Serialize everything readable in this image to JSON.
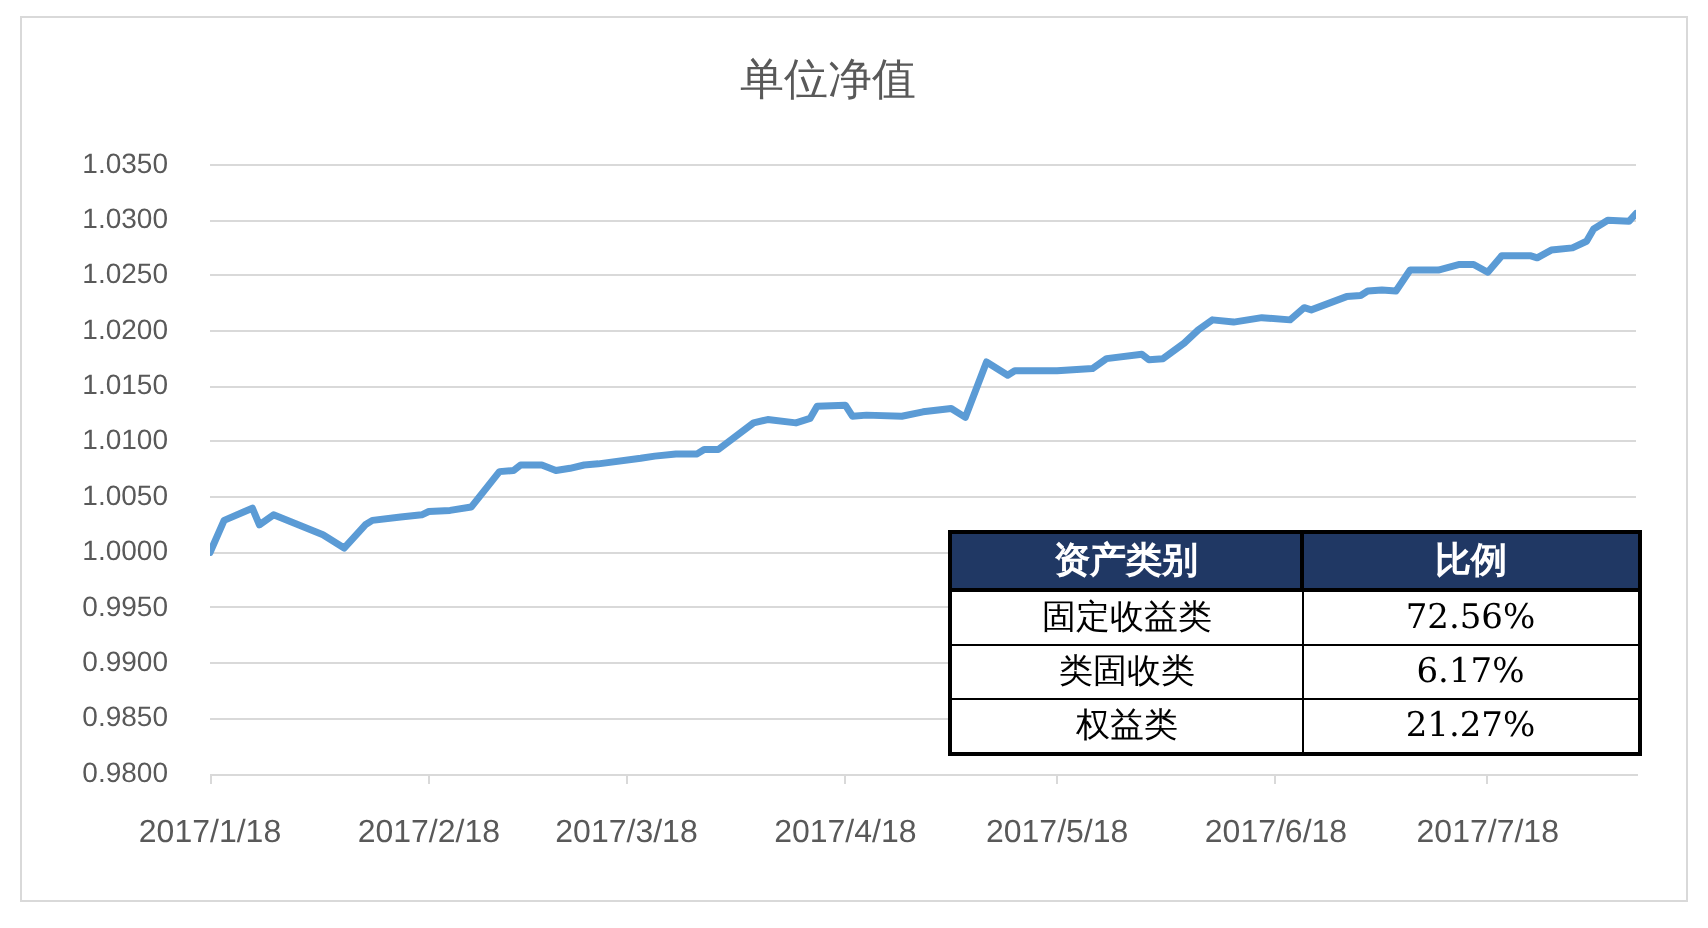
{
  "chart_data": [
    {
      "type": "line",
      "title": "单位净值",
      "color": "#5b9bd5",
      "marker": "none",
      "line_style": "solid",
      "grid": "y",
      "legend": false,
      "x": [
        "2017-01-18",
        "2017-01-20",
        "2017-01-24",
        "2017-01-25",
        "2017-01-27",
        "2017-02-03",
        "2017-02-06",
        "2017-02-09",
        "2017-02-10",
        "2017-02-14",
        "2017-02-17",
        "2017-02-18",
        "2017-02-21",
        "2017-02-24",
        "2017-02-28",
        "2017-03-02",
        "2017-03-03",
        "2017-03-06",
        "2017-03-08",
        "2017-03-10",
        "2017-03-12",
        "2017-03-14",
        "2017-03-20",
        "2017-03-22",
        "2017-03-25",
        "2017-03-28",
        "2017-03-29",
        "2017-03-31",
        "2017-04-05",
        "2017-04-07",
        "2017-04-11",
        "2017-04-13",
        "2017-04-14",
        "2017-04-18",
        "2017-04-19",
        "2017-04-21",
        "2017-04-26",
        "2017-04-29",
        "2017-05-03",
        "2017-05-05",
        "2017-05-08",
        "2017-05-11",
        "2017-05-12",
        "2017-05-18",
        "2017-05-23",
        "2017-05-25",
        "2017-05-30",
        "2017-05-31",
        "2017-06-02",
        "2017-06-05",
        "2017-06-07",
        "2017-06-09",
        "2017-06-12",
        "2017-06-14",
        "2017-06-16",
        "2017-06-20",
        "2017-06-22",
        "2017-06-23",
        "2017-06-28",
        "2017-06-30",
        "2017-07-01",
        "2017-07-03",
        "2017-07-05",
        "2017-07-07",
        "2017-07-11",
        "2017-07-14",
        "2017-07-16",
        "2017-07-18",
        "2017-07-20",
        "2017-07-24",
        "2017-07-25",
        "2017-07-27",
        "2017-07-30",
        "2017-08-01",
        "2017-08-02",
        "2017-08-04",
        "2017-08-07",
        "2017-08-08"
      ],
      "values": [
        1.0,
        1.0029,
        1.004,
        1.0025,
        1.0034,
        1.0016,
        1.0004,
        1.0025,
        1.0029,
        1.0032,
        1.0034,
        1.0037,
        1.0038,
        1.0041,
        1.0073,
        1.0074,
        1.0079,
        1.0079,
        1.0074,
        1.0076,
        1.0079,
        1.008,
        1.0085,
        1.0087,
        1.0089,
        1.0089,
        1.0093,
        1.0093,
        1.0117,
        1.012,
        1.0117,
        1.0121,
        1.0132,
        1.0133,
        1.0123,
        1.0124,
        1.0123,
        1.0127,
        1.013,
        1.0122,
        1.0172,
        1.016,
        1.0164,
        1.0164,
        1.0166,
        1.0175,
        1.0179,
        1.0174,
        1.0175,
        1.0189,
        1.0201,
        1.021,
        1.0208,
        1.021,
        1.0212,
        1.021,
        1.0221,
        1.0219,
        1.0231,
        1.0232,
        1.0236,
        1.0237,
        1.0236,
        1.0255,
        1.0255,
        1.026,
        1.026,
        1.0253,
        1.0268,
        1.0268,
        1.0266,
        1.0273,
        1.0275,
        1.0281,
        1.0292,
        1.03,
        1.0299,
        1.0306
      ],
      "xlim": [
        "2017-01-18",
        "2017-08-08"
      ],
      "xticks": [
        {
          "value": "2017-01-18",
          "label": "2017/1/18"
        },
        {
          "value": "2017-02-18",
          "label": "2017/2/18"
        },
        {
          "value": "2017-03-18",
          "label": "2017/3/18"
        },
        {
          "value": "2017-04-18",
          "label": "2017/4/18"
        },
        {
          "value": "2017-05-18",
          "label": "2017/5/18"
        },
        {
          "value": "2017-06-18",
          "label": "2017/6/18"
        },
        {
          "value": "2017-07-18",
          "label": "2017/7/18"
        }
      ],
      "ylim": [
        0.98,
        1.035
      ],
      "yticks": [
        {
          "value": 0.98,
          "label": "0.9800"
        },
        {
          "value": 0.985,
          "label": "0.9850"
        },
        {
          "value": 0.99,
          "label": "0.9900"
        },
        {
          "value": 0.995,
          "label": "0.9950"
        },
        {
          "value": 1.0,
          "label": "1.0000"
        },
        {
          "value": 1.005,
          "label": "1.0050"
        },
        {
          "value": 1.01,
          "label": "1.0100"
        },
        {
          "value": 1.015,
          "label": "1.0150"
        },
        {
          "value": 1.02,
          "label": "1.0200"
        },
        {
          "value": 1.025,
          "label": "1.0250"
        },
        {
          "value": 1.03,
          "label": "1.0300"
        },
        {
          "value": 1.035,
          "label": "1.0350"
        }
      ]
    },
    {
      "type": "other",
      "annotations": [
        "资产类别",
        "比例"
      ],
      "categories": [
        "固定收益类",
        "类固收类",
        "权益类"
      ],
      "value_labels": [
        "72.56%",
        "6.17%",
        "21.27%"
      ]
    }
  ]
}
